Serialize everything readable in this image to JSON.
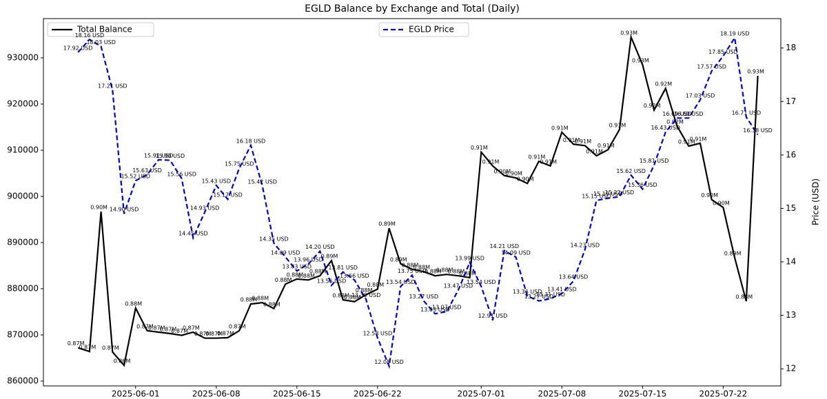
{
  "chart_data": {
    "type": "line",
    "title": "EGLD Balance by Exchange and Total (Daily)",
    "y2label": "Price (USD)",
    "x": [
      "2025-05-27",
      "2025-05-28",
      "2025-05-29",
      "2025-05-30",
      "2025-05-31",
      "2025-06-01",
      "2025-06-02",
      "2025-06-03",
      "2025-06-04",
      "2025-06-05",
      "2025-06-06",
      "2025-06-07",
      "2025-06-08",
      "2025-06-09",
      "2025-06-10",
      "2025-06-11",
      "2025-06-12",
      "2025-06-13",
      "2025-06-14",
      "2025-06-15",
      "2025-06-16",
      "2025-06-17",
      "2025-06-18",
      "2025-06-19",
      "2025-06-20",
      "2025-06-21",
      "2025-06-22",
      "2025-06-23",
      "2025-06-24",
      "2025-06-25",
      "2025-06-26",
      "2025-06-27",
      "2025-06-28",
      "2025-06-29",
      "2025-06-30",
      "2025-07-01",
      "2025-07-02",
      "2025-07-03",
      "2025-07-04",
      "2025-07-05",
      "2025-07-06",
      "2025-07-07",
      "2025-07-08",
      "2025-07-09",
      "2025-07-10",
      "2025-07-11",
      "2025-07-12",
      "2025-07-13",
      "2025-07-14",
      "2025-07-15",
      "2025-07-16",
      "2025-07-17",
      "2025-07-18",
      "2025-07-19",
      "2025-07-20",
      "2025-07-21",
      "2025-07-22",
      "2025-07-23",
      "2025-07-24",
      "2025-07-25"
    ],
    "xlim": [
      "2025-05-24",
      "2025-07-27"
    ],
    "xticks": [
      "2025-06-01",
      "2025-06-08",
      "2025-06-15",
      "2025-06-22",
      "2025-07-01",
      "2025-07-08",
      "2025-07-15",
      "2025-07-22"
    ],
    "ylim": [
      858950,
      938510
    ],
    "yticks": [
      860000,
      870000,
      880000,
      890000,
      900000,
      910000,
      920000,
      930000
    ],
    "y2lim": [
      11.68,
      18.55
    ],
    "y2ticks": [
      12,
      13,
      14,
      15,
      16,
      17,
      18
    ],
    "series": [
      {
        "name": "Total Balance",
        "color": "#000000",
        "dash": false,
        "legend": "upper left",
        "values": [
          867200,
          866400,
          896700,
          866300,
          863400,
          875800,
          870900,
          870600,
          870300,
          869900,
          870600,
          869300,
          869300,
          869400,
          870900,
          876700,
          877000,
          875700,
          881000,
          882100,
          881900,
          882800,
          886100,
          877600,
          877200,
          878700,
          879900,
          893100,
          885400,
          884200,
          883700,
          882800,
          883100,
          882800,
          882400,
          909600,
          906600,
          904500,
          904000,
          902800,
          907600,
          906600,
          913900,
          911300,
          911000,
          908800,
          910100,
          914500,
          934500,
          928500,
          918700,
          923400,
          915200,
          910900,
          911500,
          899300,
          897600,
          886700,
          877300,
          926100
        ],
        "value_labels": [
          "0.87M",
          "0.87M",
          "0.90M",
          "0.87M",
          "0.86M",
          "0.88M",
          "0.87M",
          "0.87M",
          "0.87M",
          "0.87M",
          "0.87M",
          "0.87M",
          "0.87M",
          "0.87M",
          "0.87M",
          "0.88M",
          "0.88M",
          "0.88M",
          "0.88M",
          "0.88M",
          "0.88M",
          "0.88M",
          "0.89M",
          "0.88M",
          "0.88M",
          "0.88M",
          "0.88M",
          "0.89M",
          "0.89M",
          "0.88M",
          "0.88M",
          "0.88M",
          "0.88M",
          "0.88M",
          "0.88M",
          "0.91M",
          "0.91M",
          "0.90M",
          "0.90M",
          "0.90M",
          "0.91M",
          "0.91M",
          "0.91M",
          "0.91M",
          "0.91M",
          "0.91M",
          "0.91M",
          "0.91M",
          "0.93M",
          "0.93M",
          "0.92M",
          "0.92M",
          "0.92M",
          "0.91M",
          "0.91M",
          "0.90M",
          "0.90M",
          "0.89M",
          "0.88M",
          "0.93M"
        ]
      },
      {
        "name": "EGLD Price",
        "color": "#0000cc",
        "dash": true,
        "axis": "y2",
        "legend": "upper center",
        "values": [
          17.92,
          18.16,
          18.03,
          17.21,
          14.9,
          15.52,
          15.63,
          15.91,
          15.9,
          15.56,
          14.45,
          14.93,
          15.43,
          15.17,
          15.75,
          16.18,
          15.42,
          14.35,
          14.09,
          13.83,
          13.96,
          14.2,
          13.56,
          13.81,
          13.66,
          13.3,
          12.58,
          12.05,
          13.54,
          13.75,
          13.27,
          13.03,
          13.07,
          13.47,
          13.99,
          13.54,
          12.91,
          14.21,
          14.09,
          13.36,
          13.27,
          13.31,
          13.41,
          13.64,
          14.23,
          15.15,
          15.19,
          15.22,
          15.62,
          15.36,
          15.81,
          16.43,
          16.69,
          16.69,
          17.03,
          17.57,
          17.85,
          18.19,
          16.71,
          16.38
        ],
        "value_labels": [
          "17.92 USD",
          "18.16 USD",
          "18.03 USD",
          "17.21 USD",
          "14.90 USD",
          "15.52 USD",
          "15.63 USD",
          "15.91 USD",
          "15.90 USD",
          "15.56 USD",
          "14.45 USD",
          "14.93 USD",
          "15.43 USD",
          "15.17 USD",
          "15.75 USD",
          "16.18 USD",
          "15.42 USD",
          "14.35 USD",
          "14.09 USD",
          "13.83 USD",
          "13.96 USD",
          "14.20 USD",
          "13.56 USD",
          "13.81 USD",
          "13.66 USD",
          "13.30 USD",
          "12.58 USD",
          "12.05 USD",
          "13.54 USD",
          "13.75 USD",
          "13.27 USD",
          "13.03 USD",
          "13.07 USD",
          "13.47 USD",
          "13.99 USD",
          "13.54 USD",
          "12.91 USD",
          "14.21 USD",
          "14.09 USD",
          "13.36 USD",
          "13.27 USD",
          "13.31 USD",
          "13.41 USD",
          "13.64 USD",
          "14.23 USD",
          "15.15 USD",
          "15.19 USD",
          "15.22 USD",
          "15.62 USD",
          "15.36 USD",
          "15.81 USD",
          "16.43 USD",
          "16.69 USD",
          "16.69 USD",
          "17.03 USD",
          "17.57 USD",
          "17.85 USD",
          "18.19 USD",
          "16.71 USD",
          "16.38 USD"
        ]
      }
    ]
  }
}
